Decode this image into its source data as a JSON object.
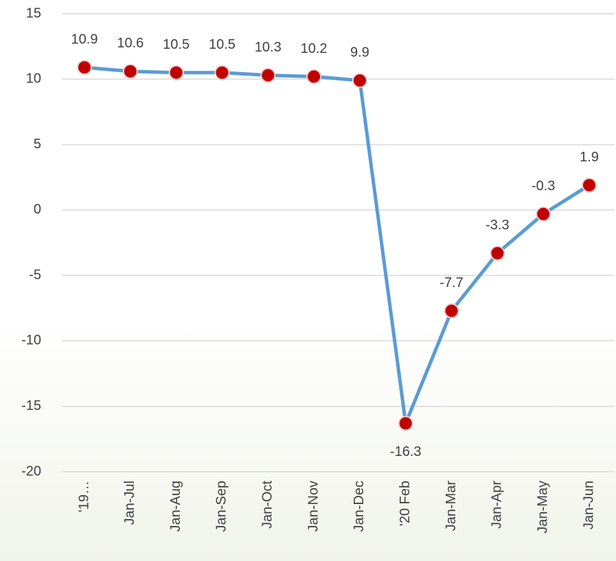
{
  "chart_data": {
    "type": "line",
    "categories": [
      "'19…",
      "Jan-Jul",
      "Jan-Aug",
      "Jan-Sep",
      "Jan-Oct",
      "Jan-Nov",
      "Jan-Dec",
      "'20 Feb",
      "Jan-Mar",
      "Jan-Apr",
      "Jan-May",
      "Jan-Jun"
    ],
    "series": [
      {
        "color": "#5b9bd5",
        "marker_color": "#c00000",
        "values": [
          10.9,
          10.6,
          10.5,
          10.5,
          10.3,
          10.2,
          9.9,
          -16.3,
          -7.7,
          -3.3,
          -0.3,
          1.9
        ]
      }
    ],
    "ylim": [
      -20,
      15
    ],
    "yticks": [
      -20,
      -15,
      -10,
      -5,
      0,
      5,
      10,
      15
    ],
    "grid": true
  }
}
